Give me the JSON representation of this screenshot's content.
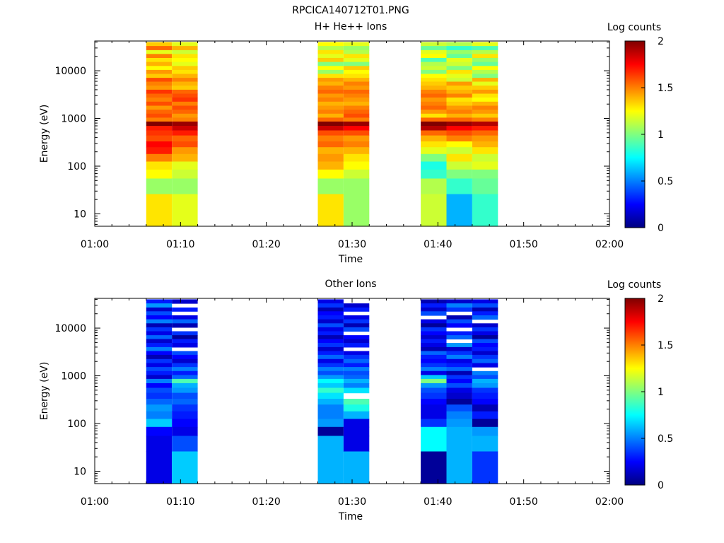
{
  "title": "RPCICA140712T01.PNG",
  "chart_data": [
    {
      "type": "heatmap",
      "title": "H+ He++ Ions",
      "xlabel": "Time",
      "ylabel": "Energy (eV)",
      "x_ticks": [
        "01:00",
        "01:10",
        "01:20",
        "01:30",
        "01:40",
        "01:50",
        "02:00"
      ],
      "x_range": [
        "01:00",
        "02:00"
      ],
      "y_scale": "log",
      "y_range": [
        5.5,
        42000
      ],
      "y_ticks": [
        10,
        100,
        1000,
        10000
      ],
      "colorbar": {
        "title": "Log counts",
        "range": [
          0,
          2
        ],
        "ticks": [
          "0",
          "0.5",
          "1",
          "1.5",
          "2"
        ]
      },
      "rows_energy_edges_eV": [
        40000,
        33000,
        27000,
        22500,
        18500,
        15300,
        12600,
        10400,
        8600,
        7100,
        5900,
        4900,
        4000,
        3300,
        2750,
        2250,
        1850,
        1530,
        1260,
        1040,
        860,
        700,
        560,
        440,
        330,
        250,
        180,
        125,
        85,
        55,
        26,
        5.5
      ],
      "columns": [
        {
          "start": "01:06",
          "end": "01:09",
          "log_counts": [
            1.35,
            1.55,
            1.2,
            1.5,
            1.3,
            1.4,
            1.25,
            1.45,
            1.35,
            1.6,
            1.5,
            1.45,
            1.65,
            1.55,
            1.5,
            1.6,
            1.45,
            1.55,
            1.6,
            1.5,
            2.0,
            1.7,
            1.65,
            1.6,
            1.75,
            1.7,
            1.5,
            1.3,
            1.25,
            1.05,
            1.3
          ]
        },
        {
          "start": "01:09",
          "end": "01:12",
          "log_counts": [
            1.2,
            1.4,
            1.15,
            1.3,
            1.25,
            1.2,
            1.35,
            1.3,
            1.4,
            1.5,
            1.4,
            1.35,
            1.55,
            1.6,
            1.65,
            1.5,
            1.6,
            1.55,
            1.45,
            1.5,
            1.95,
            1.85,
            1.7,
            1.55,
            1.6,
            1.45,
            1.4,
            1.2,
            1.15,
            1.05,
            1.2
          ]
        },
        {
          "start": "01:26",
          "end": "01:29",
          "log_counts": [
            1.25,
            1.1,
            1.3,
            1.2,
            1.35,
            1.0,
            1.25,
            1.05,
            1.3,
            1.45,
            1.4,
            1.5,
            1.55,
            1.45,
            1.5,
            1.4,
            1.45,
            1.5,
            1.4,
            1.55,
            2.0,
            1.85,
            1.6,
            1.5,
            1.55,
            1.4,
            1.45,
            1.4,
            1.25,
            1.05,
            1.3
          ]
        },
        {
          "start": "01:29",
          "end": "01:32",
          "log_counts": [
            1.2,
            1.05,
            1.1,
            1.3,
            1.2,
            1.0,
            1.35,
            1.25,
            1.3,
            1.4,
            1.5,
            1.45,
            1.55,
            1.5,
            1.45,
            1.4,
            1.5,
            1.55,
            1.6,
            1.5,
            1.95,
            1.75,
            1.6,
            1.45,
            1.5,
            1.4,
            1.3,
            1.25,
            1.15,
            1.05,
            1.05
          ]
        },
        {
          "start": "01:38",
          "end": "01:41",
          "log_counts": [
            1.15,
            0.95,
            1.2,
            1.25,
            0.9,
            1.1,
            1.15,
            1.0,
            1.25,
            1.3,
            1.35,
            1.4,
            1.5,
            1.55,
            1.45,
            1.5,
            1.55,
            1.45,
            1.3,
            1.55,
            2.0,
            1.9,
            1.55,
            1.4,
            1.3,
            1.2,
            1.0,
            0.8,
            0.85,
            1.1,
            1.15
          ]
        },
        {
          "start": "01:41",
          "end": "01:44",
          "log_counts": [
            1.1,
            0.85,
            1.05,
            0.95,
            1.2,
            1.15,
            1.0,
            1.3,
            1.2,
            1.15,
            1.45,
            1.35,
            1.4,
            1.5,
            1.3,
            1.35,
            1.45,
            1.5,
            1.4,
            1.55,
            1.95,
            1.75,
            1.6,
            1.5,
            1.25,
            1.15,
            1.3,
            1.15,
            1.0,
            0.85,
            0.6
          ]
        },
        {
          "start": "01:44",
          "end": "01:47",
          "log_counts": [
            1.2,
            0.9,
            1.1,
            1.3,
            1.05,
            0.95,
            1.25,
            1.1,
            1.0,
            1.4,
            1.2,
            1.35,
            1.45,
            1.3,
            1.25,
            1.4,
            1.5,
            1.45,
            1.35,
            1.5,
            1.9,
            1.7,
            1.55,
            1.45,
            1.4,
            1.3,
            1.15,
            1.2,
            1.0,
            0.95,
            0.85
          ]
        }
      ]
    },
    {
      "type": "heatmap",
      "title": "Other Ions",
      "xlabel": "Time",
      "ylabel": "Energy (eV)",
      "x_ticks": [
        "01:00",
        "01:10",
        "01:20",
        "01:30",
        "01:40",
        "01:50",
        "02:00"
      ],
      "x_range": [
        "01:00",
        "02:00"
      ],
      "y_scale": "log",
      "y_range": [
        5.5,
        42000
      ],
      "y_ticks": [
        10,
        100,
        1000,
        10000
      ],
      "colorbar": {
        "title": "Log counts",
        "range": [
          0,
          2
        ],
        "ticks": [
          "0",
          "0.5",
          "1",
          "1.5",
          "2"
        ]
      },
      "rows_energy_edges_eV": [
        40000,
        33000,
        27000,
        22500,
        18500,
        15300,
        12600,
        10400,
        8600,
        7100,
        5900,
        4900,
        4000,
        3300,
        2750,
        2250,
        1850,
        1530,
        1260,
        1040,
        860,
        700,
        560,
        440,
        330,
        250,
        180,
        125,
        85,
        55,
        26,
        5.5
      ],
      "columns": [
        {
          "start": "01:06",
          "end": "01:09",
          "log_counts": [
            0.3,
            0.55,
            0.15,
            0.4,
            0.25,
            0.5,
            0.1,
            0.35,
            0.2,
            0.45,
            0.15,
            0.3,
            0.5,
            0.25,
            0.1,
            0.35,
            0.2,
            0.4,
            0.3,
            0.15,
            0.5,
            0.25,
            0.4,
            0.35,
            0.45,
            0.55,
            0.5,
            0.65,
            0.25,
            0.2,
            0.2
          ]
        },
        {
          "start": "01:09",
          "end": "01:12",
          "log_counts": [
            0.15,
            null,
            0.3,
            null,
            0.2,
            0.45,
            0.1,
            null,
            0.35,
            0.05,
            0.3,
            0.2,
            null,
            0.4,
            0.25,
            0.15,
            0.35,
            0.5,
            0.3,
            0.45,
            0.9,
            0.6,
            0.55,
            0.4,
            0.45,
            0.35,
            0.3,
            0.25,
            0.2,
            0.4,
            0.65
          ]
        },
        {
          "start": "01:26",
          "end": "01:29",
          "log_counts": [
            0.2,
            0.35,
            0.1,
            0.25,
            0.3,
            0.15,
            0.4,
            0.2,
            0.3,
            0.1,
            0.25,
            0.35,
            0.15,
            0.3,
            0.45,
            0.2,
            0.35,
            0.5,
            0.4,
            0.55,
            0.75,
            0.65,
            0.85,
            0.7,
            0.6,
            0.5,
            0.5,
            0.55,
            0.05,
            0.6,
            0.6
          ]
        },
        {
          "start": "01:29",
          "end": "01:32",
          "log_counts": [
            null,
            0.15,
            0.3,
            null,
            0.2,
            0.35,
            0.1,
            0.4,
            null,
            0.25,
            0.15,
            0.3,
            null,
            0.2,
            0.35,
            0.45,
            0.3,
            0.5,
            0.4,
            0.45,
            0.6,
            0.5,
            0.7,
            null,
            0.9,
            0.8,
            0.6,
            0.2,
            0.2,
            0.2,
            0.6
          ]
        },
        {
          "start": "01:38",
          "end": "01:41",
          "log_counts": [
            0.1,
            0.3,
            0.15,
            0.4,
            null,
            0.2,
            0.05,
            0.35,
            0.25,
            0.15,
            0.3,
            0.2,
            0.1,
            0.45,
            0.3,
            0.25,
            0.35,
            0.5,
            0.2,
            0.65,
            1.0,
            0.55,
            0.4,
            0.35,
            0.25,
            0.2,
            0.2,
            0.35,
            0.75,
            0.75,
            0.05
          ]
        },
        {
          "start": "01:41",
          "end": "01:44",
          "log_counts": [
            0.15,
            0.5,
            0.35,
            null,
            0.1,
            0.4,
            0.25,
            null,
            0.3,
            0.45,
            null,
            0.55,
            0.15,
            0.35,
            0.5,
            0.2,
            0.3,
            0.45,
            0.1,
            0.35,
            0.25,
            0.4,
            0.2,
            0.15,
            0.05,
            0.4,
            0.5,
            0.55,
            0.6,
            0.6,
            0.6
          ]
        },
        {
          "start": "01:44",
          "end": "01:47",
          "log_counts": [
            0.2,
            0.4,
            0.1,
            0.3,
            0.45,
            null,
            0.15,
            0.35,
            0.2,
            0.05,
            0.4,
            0.25,
            0.3,
            0.15,
            0.35,
            0.45,
            0.2,
            null,
            0.5,
            0.4,
            0.6,
            0.55,
            0.35,
            0.3,
            0.25,
            0.1,
            0.3,
            0.05,
            0.55,
            0.6,
            0.35
          ]
        }
      ]
    }
  ]
}
